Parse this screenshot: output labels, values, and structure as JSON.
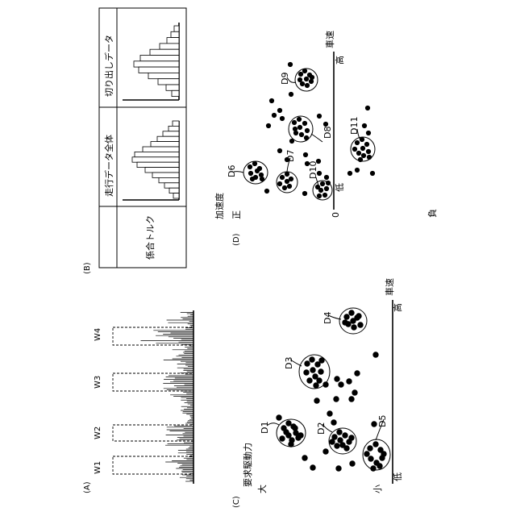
{
  "panels": {
    "a": {
      "label": "(A)",
      "windows": [
        "W1",
        "W2",
        "W3",
        "W4"
      ]
    },
    "b": {
      "label": "(B)",
      "row_header": "係合トルク",
      "columns": [
        "走行データ全体",
        "切り出しデータ"
      ]
    },
    "c": {
      "label": "(C)",
      "y_axis_title": "要求駆動力",
      "y_high": "大",
      "y_low": "小",
      "x_axis_title": "車速",
      "x_low": "低",
      "x_high": "高",
      "clusters": [
        "D1",
        "D2",
        "D3",
        "D4",
        "D5"
      ]
    },
    "d": {
      "label": "(D)",
      "y_axis_title": "加速度",
      "y_pos": "正",
      "y_zero": "0",
      "y_neg": "負",
      "x_axis_title": "車速",
      "x_low": "低",
      "x_high": "高",
      "clusters": [
        "D6",
        "D7",
        "D8",
        "D9",
        "D10",
        "D11"
      ]
    }
  },
  "colors": {
    "ink": "#000000",
    "background": "#ffffff"
  }
}
